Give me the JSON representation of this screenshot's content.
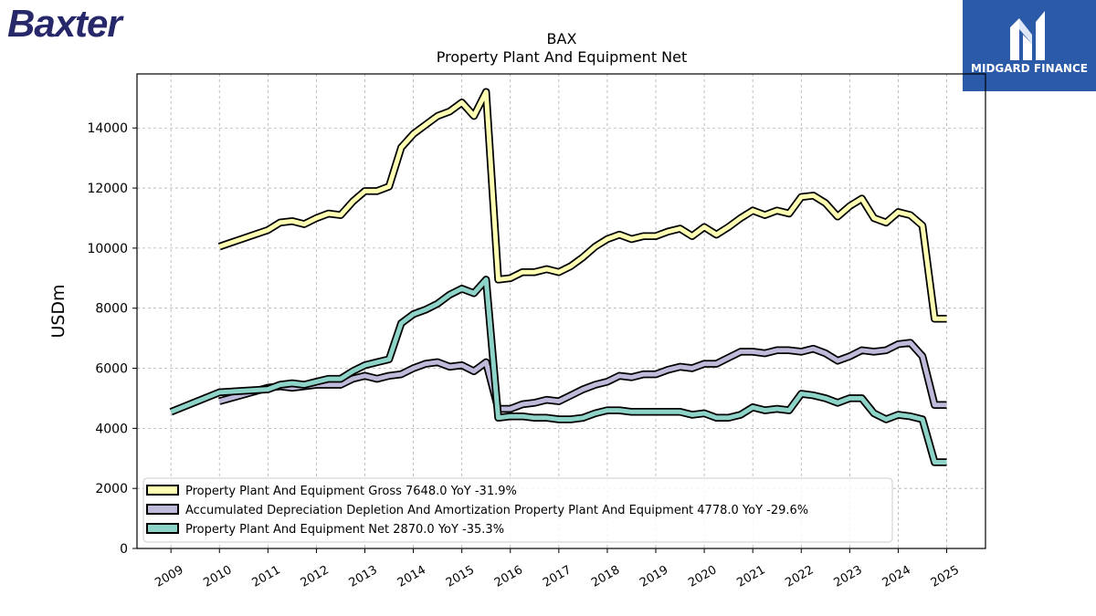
{
  "brand_left": "Baxter",
  "brand_right": "MIDGARD FINANCE",
  "chart_data": {
    "type": "line",
    "title": "BAX",
    "subtitle": "Property Plant And Equipment Net",
    "ylabel": "USDm",
    "xlabel": "",
    "ylim": [
      0,
      15800
    ],
    "xlim": [
      2008.3,
      2025.8
    ],
    "yticks": [
      0,
      2000,
      4000,
      6000,
      8000,
      10000,
      12000,
      14000
    ],
    "xticks": [
      2009,
      2010,
      2011,
      2012,
      2013,
      2014,
      2015,
      2016,
      2017,
      2018,
      2019,
      2020,
      2021,
      2022,
      2023,
      2024,
      2025
    ],
    "grid": true,
    "legend_position": "bottom-left",
    "series": [
      {
        "name": "Property Plant And Equipment Gross",
        "legend": "Property Plant And Equipment Gross  7648.0 YoY -31.9%",
        "color": "#ffffb3",
        "x": [
          2010.0,
          2011.0,
          2011.25,
          2011.5,
          2011.75,
          2012.0,
          2012.25,
          2012.5,
          2012.75,
          2013.0,
          2013.25,
          2013.5,
          2013.75,
          2014.0,
          2014.25,
          2014.5,
          2014.75,
          2015.0,
          2015.25,
          2015.5,
          2015.75,
          2016.0,
          2016.25,
          2016.5,
          2016.75,
          2017.0,
          2017.25,
          2017.5,
          2017.75,
          2018.0,
          2018.25,
          2018.5,
          2018.75,
          2019.0,
          2019.25,
          2019.5,
          2019.75,
          2020.0,
          2020.25,
          2020.5,
          2020.75,
          2021.0,
          2021.25,
          2021.5,
          2021.75,
          2022.0,
          2022.25,
          2022.5,
          2022.75,
          2023.0,
          2023.25,
          2023.5,
          2023.75,
          2024.0,
          2024.25,
          2024.5,
          2024.75,
          2025.0
        ],
        "values": [
          10050,
          10600,
          10850,
          10900,
          10800,
          11000,
          11150,
          11100,
          11550,
          11900,
          11900,
          12050,
          13350,
          13800,
          14100,
          14400,
          14550,
          14850,
          14400,
          15200,
          8950,
          9000,
          9200,
          9200,
          9300,
          9200,
          9400,
          9700,
          10050,
          10300,
          10450,
          10300,
          10400,
          10400,
          10550,
          10650,
          10400,
          10700,
          10450,
          10700,
          11000,
          11250,
          11100,
          11250,
          11150,
          11700,
          11750,
          11500,
          11050,
          11400,
          11650,
          11000,
          10850,
          11200,
          11100,
          10750,
          7648,
          7648
        ]
      },
      {
        "name": "Accumulated Depreciation Depletion And Amortization Property Plant And Equipment",
        "legend": "Accumulated Depreciation Depletion And Amortization Property Plant And Equipment  4778.0 YoY -29.6%",
        "color": "#bebada",
        "x": [
          2010.0,
          2011.0,
          2011.25,
          2011.5,
          2011.75,
          2012.0,
          2012.25,
          2012.5,
          2012.75,
          2013.0,
          2013.25,
          2013.5,
          2013.75,
          2014.0,
          2014.25,
          2014.5,
          2014.75,
          2015.0,
          2015.25,
          2015.5,
          2015.75,
          2016.0,
          2016.25,
          2016.5,
          2016.75,
          2017.0,
          2017.25,
          2017.5,
          2017.75,
          2018.0,
          2018.25,
          2018.5,
          2018.75,
          2019.0,
          2019.25,
          2019.5,
          2019.75,
          2020.0,
          2020.25,
          2020.5,
          2020.75,
          2021.0,
          2021.25,
          2021.5,
          2021.75,
          2022.0,
          2022.25,
          2022.5,
          2022.75,
          2023.0,
          2023.25,
          2023.5,
          2023.75,
          2024.0,
          2024.25,
          2024.5,
          2024.75,
          2025.0
        ],
        "values": [
          4900,
          5350,
          5400,
          5350,
          5400,
          5450,
          5450,
          5450,
          5650,
          5750,
          5650,
          5750,
          5800,
          6000,
          6150,
          6200,
          6050,
          6100,
          5900,
          6200,
          4650,
          4650,
          4800,
          4850,
          4950,
          4900,
          5100,
          5300,
          5450,
          5550,
          5750,
          5700,
          5800,
          5800,
          5950,
          6050,
          6000,
          6150,
          6150,
          6350,
          6550,
          6550,
          6500,
          6600,
          6600,
          6550,
          6650,
          6500,
          6250,
          6400,
          6600,
          6550,
          6600,
          6800,
          6850,
          6400,
          4778,
          4778
        ]
      },
      {
        "name": "Property Plant And Equipment Net",
        "legend": "Property Plant And Equipment Net  2870.0 YoY -35.3%",
        "color": "#8dd3c7",
        "x": [
          2009.0,
          2010.0,
          2011.0,
          2011.25,
          2011.5,
          2011.75,
          2012.0,
          2012.25,
          2012.5,
          2012.75,
          2013.0,
          2013.25,
          2013.5,
          2013.75,
          2014.0,
          2014.25,
          2014.5,
          2014.75,
          2015.0,
          2015.25,
          2015.5,
          2015.75,
          2016.0,
          2016.25,
          2016.5,
          2016.75,
          2017.0,
          2017.25,
          2017.5,
          2017.75,
          2018.0,
          2018.25,
          2018.5,
          2018.75,
          2019.0,
          2019.25,
          2019.5,
          2019.75,
          2020.0,
          2020.25,
          2020.5,
          2020.75,
          2021.0,
          2021.25,
          2021.5,
          2021.75,
          2022.0,
          2022.25,
          2022.5,
          2022.75,
          2023.0,
          2023.25,
          2023.5,
          2023.75,
          2024.0,
          2024.25,
          2024.5,
          2024.75,
          2025.0
        ],
        "values": [
          4550,
          5200,
          5300,
          5450,
          5500,
          5450,
          5550,
          5650,
          5650,
          5900,
          6100,
          6200,
          6300,
          7500,
          7800,
          7950,
          8150,
          8450,
          8650,
          8500,
          8950,
          4350,
          4400,
          4400,
          4350,
          4350,
          4300,
          4300,
          4350,
          4500,
          4600,
          4600,
          4550,
          4550,
          4550,
          4550,
          4550,
          4450,
          4500,
          4350,
          4350,
          4450,
          4700,
          4600,
          4650,
          4600,
          5150,
          5100,
          5000,
          4850,
          5000,
          5000,
          4500,
          4300,
          4450,
          4400,
          4300,
          2870,
          2870
        ]
      }
    ]
  }
}
